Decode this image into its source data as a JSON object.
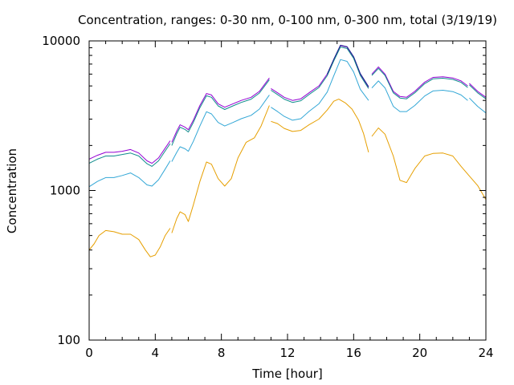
{
  "chart_data": {
    "type": "line",
    "title": "Concentration, ranges: 0-30 nm, 0-100 nm, 0-300 nm, total (3/19/19)",
    "xlabel": "Time [hour]",
    "ylabel": "Concentration",
    "xlim": [
      0,
      24
    ],
    "ylim": [
      100,
      10000
    ],
    "yscale": "log",
    "grid": false,
    "legend": "none",
    "x_ticks": [
      0,
      4,
      8,
      12,
      16,
      20,
      24
    ],
    "y_ticks": [
      100,
      1000,
      10000
    ],
    "series": [
      {
        "color": "#9400d3",
        "segments": [
          [
            [
              0,
              1620
            ],
            [
              0.5,
              1720
            ],
            [
              1,
              1800
            ],
            [
              1.5,
              1800
            ],
            [
              2,
              1830
            ],
            [
              2.5,
              1880
            ],
            [
              3,
              1780
            ],
            [
              3.5,
              1580
            ],
            [
              3.8,
              1520
            ],
            [
              4.2,
              1650
            ],
            [
              4.6,
              1920
            ],
            [
              4.9,
              2150
            ]
          ],
          [
            [
              5,
              2100
            ],
            [
              5.3,
              2500
            ],
            [
              5.5,
              2750
            ],
            [
              5.8,
              2650
            ],
            [
              6,
              2550
            ],
            [
              6.3,
              2950
            ],
            [
              6.7,
              3700
            ],
            [
              7.1,
              4450
            ],
            [
              7.4,
              4350
            ],
            [
              7.8,
              3800
            ],
            [
              8.2,
              3600
            ],
            [
              8.7,
              3800
            ],
            [
              9.2,
              4000
            ],
            [
              9.8,
              4200
            ],
            [
              10.3,
              4600
            ],
            [
              10.9,
              5650
            ]
          ],
          [
            [
              11,
              4800
            ],
            [
              11.4,
              4500
            ],
            [
              11.8,
              4200
            ],
            [
              12.3,
              4000
            ],
            [
              12.8,
              4100
            ],
            [
              13.3,
              4500
            ],
            [
              13.9,
              5000
            ],
            [
              14.4,
              6000
            ],
            [
              14.8,
              7500
            ],
            [
              15.2,
              9300
            ],
            [
              15.6,
              9100
            ],
            [
              16,
              7800
            ],
            [
              16.4,
              6000
            ],
            [
              16.9,
              4900
            ]
          ],
          [
            [
              17.1,
              6000
            ],
            [
              17.5,
              6700
            ],
            [
              17.9,
              6000
            ],
            [
              18.4,
              4600
            ],
            [
              18.8,
              4250
            ],
            [
              19.2,
              4200
            ],
            [
              19.7,
              4600
            ],
            [
              20.3,
              5300
            ],
            [
              20.8,
              5700
            ],
            [
              21.4,
              5750
            ],
            [
              22,
              5650
            ],
            [
              22.5,
              5400
            ],
            [
              22.9,
              5000
            ]
          ],
          [
            [
              23,
              5200
            ],
            [
              23.5,
              4600
            ],
            [
              24,
              4200
            ]
          ]
        ]
      },
      {
        "color": "#0f8c8c",
        "segments": [
          [
            [
              0,
              1520
            ],
            [
              0.5,
              1620
            ],
            [
              1,
              1700
            ],
            [
              1.5,
              1700
            ],
            [
              2,
              1740
            ],
            [
              2.5,
              1780
            ],
            [
              3,
              1700
            ],
            [
              3.5,
              1510
            ],
            [
              3.8,
              1450
            ],
            [
              4.2,
              1580
            ],
            [
              4.6,
              1840
            ],
            [
              4.9,
              2060
            ]
          ],
          [
            [
              5,
              2000
            ],
            [
              5.3,
              2400
            ],
            [
              5.5,
              2650
            ],
            [
              5.8,
              2560
            ],
            [
              6,
              2460
            ],
            [
              6.3,
              2850
            ],
            [
              6.7,
              3580
            ],
            [
              7.1,
              4300
            ],
            [
              7.4,
              4200
            ],
            [
              7.8,
              3680
            ],
            [
              8.2,
              3480
            ],
            [
              8.7,
              3680
            ],
            [
              9.2,
              3880
            ],
            [
              9.8,
              4080
            ],
            [
              10.3,
              4480
            ],
            [
              10.9,
              5500
            ]
          ],
          [
            [
              11,
              4680
            ],
            [
              11.4,
              4380
            ],
            [
              11.8,
              4080
            ],
            [
              12.3,
              3880
            ],
            [
              12.8,
              3980
            ],
            [
              13.3,
              4380
            ],
            [
              13.9,
              4880
            ],
            [
              14.4,
              5850
            ],
            [
              14.8,
              7350
            ],
            [
              15.2,
              9100
            ],
            [
              15.6,
              8900
            ],
            [
              16,
              7650
            ],
            [
              16.4,
              5880
            ],
            [
              16.9,
              4800
            ]
          ],
          [
            [
              17.1,
              5880
            ],
            [
              17.5,
              6550
            ],
            [
              17.9,
              5880
            ],
            [
              18.4,
              4500
            ],
            [
              18.8,
              4150
            ],
            [
              19.2,
              4100
            ],
            [
              19.7,
              4500
            ],
            [
              20.3,
              5180
            ],
            [
              20.8,
              5580
            ],
            [
              21.4,
              5630
            ],
            [
              22,
              5530
            ],
            [
              22.5,
              5280
            ],
            [
              22.9,
              4880
            ]
          ],
          [
            [
              23,
              5080
            ],
            [
              23.5,
              4500
            ],
            [
              24,
              4100
            ]
          ]
        ]
      },
      {
        "color": "#1f1f8f",
        "segments": [
          [
            [
              14.4,
              6000
            ],
            [
              14.8,
              7550
            ],
            [
              15.2,
              9350
            ],
            [
              15.6,
              9150
            ],
            [
              16,
              7850
            ],
            [
              16.4,
              6050
            ],
            [
              16.9,
              4950
            ]
          ]
        ]
      },
      {
        "color": "#33a7d6",
        "segments": [
          [
            [
              0,
              1060
            ],
            [
              0.5,
              1150
            ],
            [
              1,
              1220
            ],
            [
              1.5,
              1220
            ],
            [
              2,
              1260
            ],
            [
              2.5,
              1310
            ],
            [
              3,
              1220
            ],
            [
              3.5,
              1090
            ],
            [
              3.8,
              1070
            ],
            [
              4.2,
              1180
            ],
            [
              4.6,
              1390
            ],
            [
              4.9,
              1580
            ]
          ],
          [
            [
              5,
              1560
            ],
            [
              5.3,
              1800
            ],
            [
              5.5,
              1960
            ],
            [
              5.8,
              1900
            ],
            [
              6,
              1830
            ],
            [
              6.3,
              2130
            ],
            [
              6.7,
              2700
            ],
            [
              7.1,
              3360
            ],
            [
              7.4,
              3250
            ],
            [
              7.8,
              2850
            ],
            [
              8.2,
              2700
            ],
            [
              8.7,
              2850
            ],
            [
              9.2,
              3020
            ],
            [
              9.8,
              3180
            ],
            [
              10.3,
              3500
            ],
            [
              10.9,
              4350
            ]
          ],
          [
            [
              11,
              3600
            ],
            [
              11.4,
              3370
            ],
            [
              11.8,
              3130
            ],
            [
              12.3,
              2950
            ],
            [
              12.8,
              3020
            ],
            [
              13.3,
              3380
            ],
            [
              13.9,
              3800
            ],
            [
              14.4,
              4550
            ],
            [
              14.8,
              5850
            ],
            [
              15.2,
              7500
            ],
            [
              15.6,
              7300
            ],
            [
              16,
              6200
            ],
            [
              16.4,
              4750
            ],
            [
              16.9,
              4000
            ]
          ],
          [
            [
              17.1,
              4850
            ],
            [
              17.5,
              5400
            ],
            [
              17.9,
              4850
            ],
            [
              18.4,
              3650
            ],
            [
              18.8,
              3370
            ],
            [
              19.2,
              3370
            ],
            [
              19.7,
              3700
            ],
            [
              20.3,
              4280
            ],
            [
              20.8,
              4630
            ],
            [
              21.4,
              4680
            ],
            [
              22,
              4580
            ],
            [
              22.5,
              4350
            ],
            [
              22.9,
              4000
            ]
          ],
          [
            [
              23,
              4150
            ],
            [
              23.5,
              3650
            ],
            [
              24,
              3300
            ]
          ]
        ]
      },
      {
        "color": "#e69f00",
        "segments": [
          [
            [
              0,
              400
            ],
            [
              0.3,
              440
            ],
            [
              0.6,
              500
            ],
            [
              1,
              540
            ],
            [
              1.5,
              530
            ],
            [
              2,
              510
            ],
            [
              2.5,
              510
            ],
            [
              3,
              470
            ],
            [
              3.4,
              400
            ],
            [
              3.7,
              360
            ],
            [
              4,
              370
            ],
            [
              4.3,
              420
            ],
            [
              4.6,
              500
            ],
            [
              4.9,
              560
            ]
          ],
          [
            [
              5,
              520
            ],
            [
              5.3,
              650
            ],
            [
              5.5,
              720
            ],
            [
              5.8,
              690
            ],
            [
              6,
              620
            ],
            [
              6.3,
              800
            ],
            [
              6.7,
              1150
            ],
            [
              7.1,
              1550
            ],
            [
              7.4,
              1500
            ],
            [
              7.8,
              1200
            ],
            [
              8.2,
              1070
            ],
            [
              8.6,
              1200
            ],
            [
              9,
              1650
            ],
            [
              9.5,
              2100
            ],
            [
              10,
              2250
            ],
            [
              10.4,
              2700
            ],
            [
              10.9,
              3700
            ]
          ],
          [
            [
              11,
              2900
            ],
            [
              11.4,
              2800
            ],
            [
              11.8,
              2600
            ],
            [
              12.3,
              2480
            ],
            [
              12.8,
              2520
            ],
            [
              13.3,
              2750
            ],
            [
              13.9,
              3000
            ],
            [
              14.4,
              3450
            ],
            [
              14.8,
              3950
            ],
            [
              15.1,
              4080
            ],
            [
              15.5,
              3850
            ],
            [
              15.9,
              3500
            ],
            [
              16.3,
              2950
            ],
            [
              16.6,
              2400
            ],
            [
              16.9,
              1800
            ]
          ],
          [
            [
              17.1,
              2300
            ],
            [
              17.5,
              2620
            ],
            [
              17.9,
              2380
            ],
            [
              18.4,
              1700
            ],
            [
              18.8,
              1170
            ],
            [
              19.2,
              1130
            ],
            [
              19.7,
              1400
            ],
            [
              20.3,
              1700
            ],
            [
              20.8,
              1770
            ],
            [
              21.4,
              1780
            ],
            [
              22,
              1700
            ],
            [
              22.5,
              1450
            ],
            [
              23,
              1250
            ],
            [
              23.5,
              1080
            ],
            [
              24,
              870
            ]
          ]
        ]
      }
    ]
  }
}
